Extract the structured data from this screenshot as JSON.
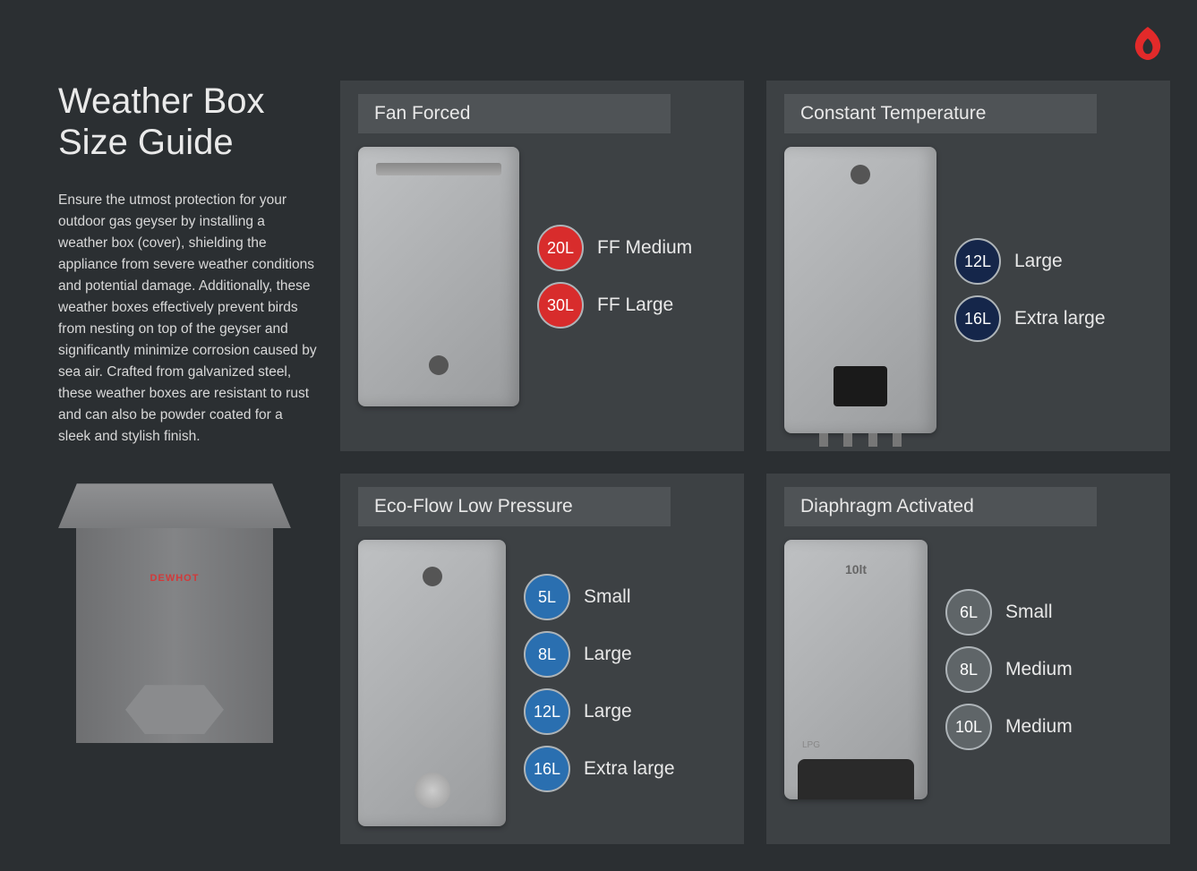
{
  "brand_color": "#e22a2a",
  "background_color": "#2b2f32",
  "card_bg": "#3d4144",
  "header_bg": "#4f5356",
  "title": "Weather Box\nSize Guide",
  "description": "Ensure the utmost protection for your outdoor gas geyser by installing a weather box (cover), shielding the appliance from severe weather conditions and potential damage. Additionally, these weather boxes effectively prevent birds from nesting on top of the geyser and significantly minimize corrosion caused by sea air. Crafted from galvanized steel, these weather boxes are resistant to rust and can also be powder coated for a sleek and stylish finish.",
  "weather_box_brand": "DEWHOT",
  "badge_colors": {
    "red": "#d82c2c",
    "navy": "#15264a",
    "blue": "#2a6fb0",
    "grey": "#5f6568"
  },
  "cards": {
    "fan_forced": {
      "title": "Fan Forced",
      "sizes": [
        {
          "capacity": "20L",
          "label": "FF Medium",
          "color": "red"
        },
        {
          "capacity": "30L",
          "label": "FF Large",
          "color": "red"
        }
      ]
    },
    "constant_temp": {
      "title": "Constant Temperature",
      "sizes": [
        {
          "capacity": "12L",
          "label": "Large",
          "color": "navy"
        },
        {
          "capacity": "16L",
          "label": "Extra large",
          "color": "navy"
        }
      ]
    },
    "eco_flow": {
      "title": "Eco-Flow Low Pressure",
      "sizes": [
        {
          "capacity": "5L",
          "label": "Small",
          "color": "blue"
        },
        {
          "capacity": "8L",
          "label": "Large",
          "color": "blue"
        },
        {
          "capacity": "12L",
          "label": "Large",
          "color": "blue"
        },
        {
          "capacity": "16L",
          "label": "Extra large",
          "color": "blue"
        }
      ]
    },
    "diaphragm": {
      "title": "Diaphragm Activated",
      "sizes": [
        {
          "capacity": "6L",
          "label": "Small",
          "color": "grey"
        },
        {
          "capacity": "8L",
          "label": "Medium",
          "color": "grey"
        },
        {
          "capacity": "10L",
          "label": "Medium",
          "color": "grey"
        }
      ]
    }
  }
}
